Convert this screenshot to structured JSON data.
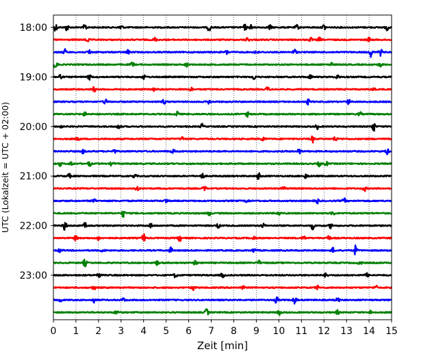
{
  "chart_data": {
    "type": "line",
    "title": "",
    "xlabel": "Zeit  [min]",
    "ylabel": "UTC (Lokalzeit = UTC + 02:00)",
    "xlim": [
      0,
      15
    ],
    "x_ticks": [
      "0",
      "1",
      "2",
      "3",
      "4",
      "5",
      "6",
      "7",
      "8",
      "9",
      "10",
      "11",
      "12",
      "13",
      "14",
      "15"
    ],
    "y_tick_labels": [
      "18:00",
      "19:00",
      "20:00",
      "21:00",
      "22:00",
      "23:00"
    ],
    "trace_interval_minutes": 15,
    "start_time": "18:00",
    "end_time": "23:45",
    "grid": "vertical dotted lines at each minute",
    "colors_cycle": [
      "#000000",
      "#ff0000",
      "#0000ff",
      "#008000"
    ],
    "series": [
      {
        "values": [
          [
            0.1,
            0.9
          ],
          [
            0.6,
            0.9
          ],
          [
            1.4,
            0.8
          ],
          [
            3.0,
            0.7
          ],
          [
            6.9,
            0.9
          ],
          [
            8.5,
            0.7
          ],
          [
            8.8,
            0.8
          ],
          [
            9.6,
            0.6
          ],
          [
            10.8,
            0.6
          ],
          [
            12.0,
            0.7
          ],
          [
            14.8,
            0.8
          ]
        ]
      },
      {
        "values": [
          [
            1.5,
            0.6
          ],
          [
            4.5,
            0.5
          ],
          [
            8.6,
            0.5
          ],
          [
            11.4,
            0.5
          ],
          [
            11.8,
            0.5
          ],
          [
            14.0,
            0.5
          ]
        ]
      },
      {
        "values": [
          [
            0.5,
            0.7
          ],
          [
            1.6,
            0.6
          ],
          [
            3.3,
            0.5
          ],
          [
            7.7,
            0.5
          ],
          [
            9.0,
            0.6
          ],
          [
            10.7,
            0.7
          ],
          [
            14.1,
            1.2
          ],
          [
            14.5,
            0.8
          ]
        ]
      },
      {
        "values": [
          [
            0.1,
            1.0
          ],
          [
            3.5,
            0.6
          ],
          [
            5.9,
            0.5
          ],
          [
            12.3,
            0.6
          ],
          [
            14.5,
            0.6
          ]
        ]
      },
      {
        "values": [
          [
            0.3,
            0.7
          ],
          [
            1.6,
            0.6
          ],
          [
            4.0,
            0.5
          ],
          [
            8.9,
            0.6
          ],
          [
            11.4,
            0.6
          ],
          [
            12.6,
            0.5
          ]
        ]
      },
      {
        "values": [
          [
            1.8,
            0.6
          ],
          [
            4.5,
            0.5
          ],
          [
            6.1,
            0.5
          ],
          [
            9.5,
            0.6
          ],
          [
            14.2,
            0.5
          ]
        ]
      },
      {
        "values": [
          [
            2.3,
            0.6
          ],
          [
            4.9,
            0.6
          ],
          [
            6.9,
            0.5
          ],
          [
            11.3,
            0.6
          ],
          [
            13.1,
            0.6
          ]
        ]
      },
      {
        "values": [
          [
            1.4,
            0.5
          ],
          [
            5.5,
            0.6
          ],
          [
            8.6,
            0.6
          ],
          [
            13.6,
            0.5
          ]
        ]
      },
      {
        "values": [
          [
            0.3,
            0.5
          ],
          [
            2.9,
            0.6
          ],
          [
            6.6,
            0.6
          ],
          [
            11.7,
            0.6
          ],
          [
            14.2,
            1.2
          ]
        ]
      },
      {
        "values": [
          [
            1.1,
            0.5
          ],
          [
            5.7,
            0.5
          ],
          [
            9.3,
            0.6
          ],
          [
            11.5,
            0.8
          ],
          [
            12.5,
            0.7
          ]
        ]
      },
      {
        "values": [
          [
            1.3,
            0.6
          ],
          [
            2.7,
            0.5
          ],
          [
            5.3,
            0.6
          ],
          [
            10.9,
            0.6
          ],
          [
            14.8,
            0.7
          ]
        ]
      },
      {
        "values": [
          [
            0.3,
            0.5
          ],
          [
            0.8,
            0.6
          ],
          [
            1.6,
            0.6
          ],
          [
            2.6,
            0.6
          ],
          [
            11.8,
            0.6
          ],
          [
            12.1,
            0.5
          ]
        ]
      },
      {
        "values": [
          [
            0.7,
            0.5
          ],
          [
            3.6,
            0.5
          ],
          [
            6.6,
            0.7
          ],
          [
            9.1,
            0.8
          ],
          [
            11.2,
            0.6
          ]
        ]
      },
      {
        "values": [
          [
            3.7,
            0.7
          ],
          [
            6.7,
            0.6
          ],
          [
            10.2,
            0.5
          ],
          [
            13.8,
            0.6
          ]
        ]
      },
      {
        "values": [
          [
            1.8,
            0.6
          ],
          [
            5.0,
            0.5
          ],
          [
            8.6,
            0.5
          ],
          [
            11.7,
            0.6
          ],
          [
            12.9,
            0.6
          ]
        ]
      },
      {
        "values": [
          [
            3.1,
            0.9
          ],
          [
            6.9,
            0.6
          ],
          [
            10.0,
            0.5
          ],
          [
            12.4,
            0.5
          ]
        ]
      },
      {
        "values": [
          [
            0.5,
            1.3
          ],
          [
            1.4,
            0.6
          ],
          [
            4.3,
            0.6
          ],
          [
            7.3,
            0.6
          ],
          [
            9.3,
            0.5
          ],
          [
            11.5,
            0.9
          ],
          [
            12.3,
            0.6
          ]
        ]
      },
      {
        "values": [
          [
            1.0,
            0.6
          ],
          [
            2.0,
            0.5
          ],
          [
            4.0,
            1.0
          ],
          [
            5.6,
            0.8
          ],
          [
            8.9,
            0.5
          ],
          [
            11.1,
            0.6
          ],
          [
            12.2,
            0.7
          ]
        ]
      },
      {
        "values": [
          [
            0.3,
            0.6
          ],
          [
            2.2,
            0.5
          ],
          [
            5.2,
            0.7
          ],
          [
            8.9,
            0.6
          ],
          [
            12.4,
            0.6
          ],
          [
            13.4,
            1.2
          ]
        ]
      },
      {
        "values": [
          [
            1.4,
            0.9
          ],
          [
            4.6,
            0.5
          ],
          [
            6.3,
            0.6
          ],
          [
            9.1,
            0.6
          ],
          [
            13.6,
            0.6
          ]
        ]
      },
      {
        "values": [
          [
            2.0,
            0.8
          ],
          [
            5.4,
            0.5
          ],
          [
            7.5,
            0.6
          ],
          [
            12.1,
            0.6
          ],
          [
            13.9,
            0.5
          ]
        ]
      },
      {
        "values": [
          [
            1.8,
            0.5
          ],
          [
            6.2,
            0.6
          ],
          [
            8.4,
            0.5
          ],
          [
            11.7,
            0.5
          ],
          [
            14.3,
            0.5
          ]
        ]
      },
      {
        "values": [
          [
            0.3,
            0.5
          ],
          [
            1.8,
            0.6
          ],
          [
            3.1,
            0.5
          ],
          [
            9.9,
            0.8
          ],
          [
            10.7,
            0.9
          ],
          [
            12.6,
            0.6
          ]
        ]
      },
      {
        "values": [
          [
            2.8,
            0.6
          ],
          [
            6.8,
            0.9
          ],
          [
            10.0,
            0.8
          ],
          [
            12.6,
            0.5
          ],
          [
            14.1,
            0.6
          ]
        ]
      }
    ]
  }
}
